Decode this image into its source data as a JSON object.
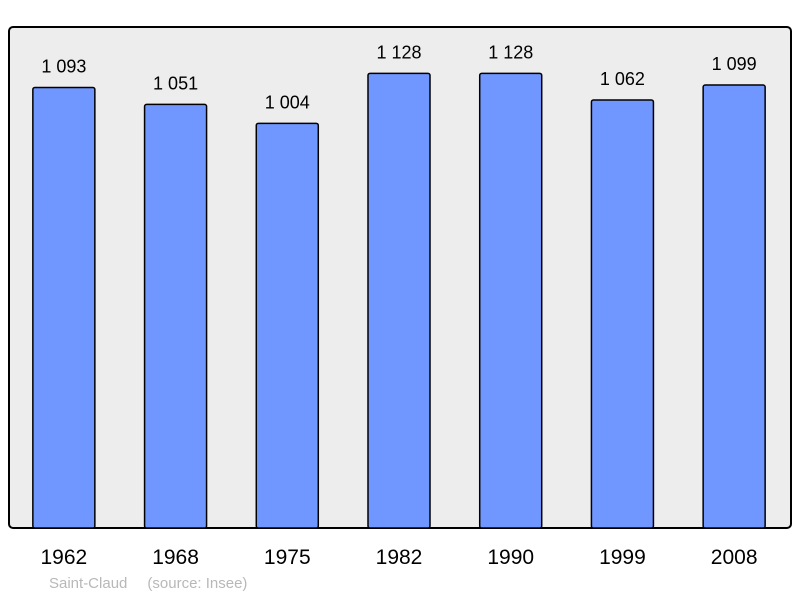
{
  "chart_data": {
    "type": "bar",
    "title": "",
    "xlabel": "",
    "ylabel": "",
    "categories": [
      "1962",
      "1968",
      "1975",
      "1982",
      "1990",
      "1999",
      "2008"
    ],
    "values": [
      1093,
      1051,
      1004,
      1128,
      1128,
      1062,
      1099
    ],
    "value_labels": [
      "1 093",
      "1 051",
      "1 004",
      "1 128",
      "1 128",
      "1 062",
      "1 099"
    ],
    "ylim": [
      0,
      1243
    ],
    "grid": false,
    "colors": {
      "bar": "#7097ff",
      "background": "#ededed",
      "border": "#000000"
    }
  },
  "footer": {
    "place": "Saint-Claud",
    "source": "(source: Insee)"
  }
}
